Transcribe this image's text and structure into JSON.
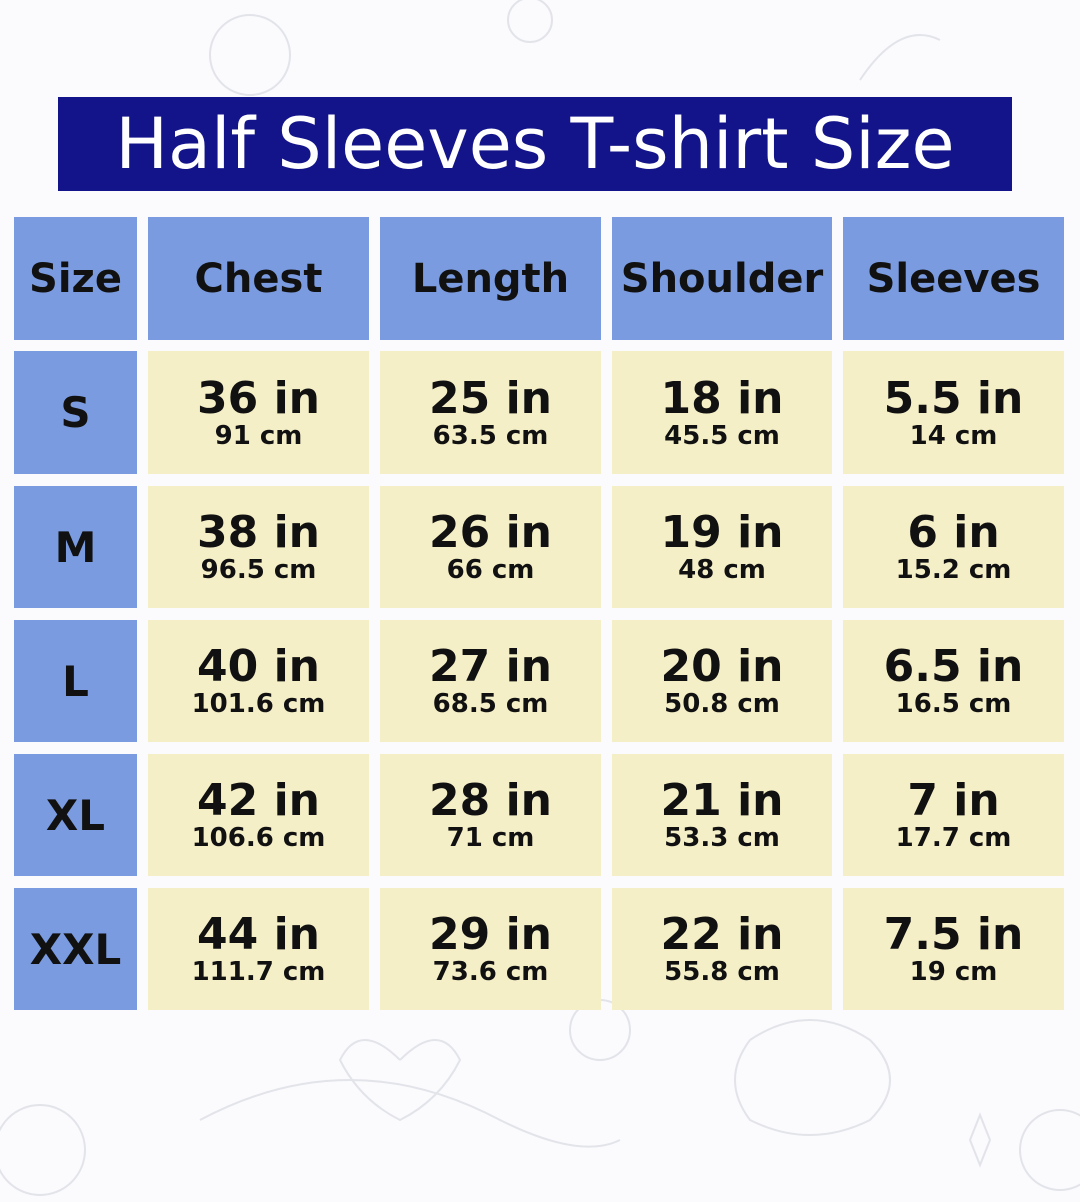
{
  "title": "Half Sleeves T-shirt Size",
  "colors": {
    "title_bg": "#14148a",
    "header_bg": "#7b9be0",
    "value_bg": "#f5efc8"
  },
  "table": {
    "headers": [
      "Size",
      "Chest",
      "Length",
      "Shoulder",
      "Sleeves"
    ],
    "rows": [
      {
        "size": "S",
        "cells": [
          {
            "in": "36 in",
            "cm": "91 cm"
          },
          {
            "in": "25 in",
            "cm": "63.5 cm"
          },
          {
            "in": "18 in",
            "cm": "45.5 cm"
          },
          {
            "in": "5.5 in",
            "cm": "14 cm"
          }
        ]
      },
      {
        "size": "M",
        "cells": [
          {
            "in": "38 in",
            "cm": "96.5 cm"
          },
          {
            "in": "26 in",
            "cm": "66 cm"
          },
          {
            "in": "19 in",
            "cm": "48 cm"
          },
          {
            "in": "6 in",
            "cm": "15.2 cm"
          }
        ]
      },
      {
        "size": "L",
        "cells": [
          {
            "in": "40 in",
            "cm": "101.6 cm"
          },
          {
            "in": "27 in",
            "cm": "68.5 cm"
          },
          {
            "in": "20 in",
            "cm": "50.8 cm"
          },
          {
            "in": "6.5 in",
            "cm": "16.5 cm"
          }
        ]
      },
      {
        "size": "XL",
        "cells": [
          {
            "in": "42 in",
            "cm": "106.6 cm"
          },
          {
            "in": "28 in",
            "cm": "71 cm"
          },
          {
            "in": "21 in",
            "cm": "53.3 cm"
          },
          {
            "in": "7 in",
            "cm": "17.7 cm"
          }
        ]
      },
      {
        "size": "XXL",
        "cells": [
          {
            "in": "44 in",
            "cm": "111.7 cm"
          },
          {
            "in": "29 in",
            "cm": "73.6 cm"
          },
          {
            "in": "22 in",
            "cm": "55.8 cm"
          },
          {
            "in": "7.5 in",
            "cm": "19 cm"
          }
        ]
      }
    ]
  }
}
